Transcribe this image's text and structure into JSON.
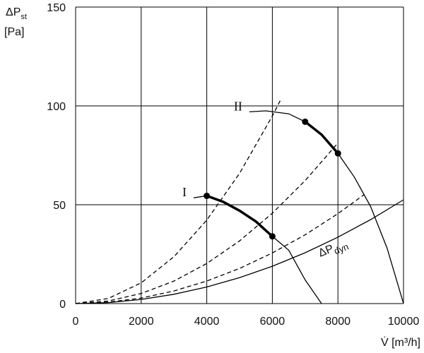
{
  "chart_data": {
    "type": "line",
    "y_label": "ΔP",
    "y_label_sub": "st",
    "y_label_unit": "[Pa]",
    "x_label": "V̇ [m³/h]",
    "xlim": [
      0,
      10000
    ],
    "xticks": [
      0,
      2000,
      4000,
      6000,
      8000,
      10000
    ],
    "ylim": [
      0,
      150
    ],
    "yticks": [
      0,
      50,
      100,
      150
    ],
    "grid": true,
    "series": [
      {
        "name": "I",
        "color": "#000000",
        "style": "solid",
        "x": [
          3600,
          4000,
          4500,
          5000,
          5500,
          6000,
          6500,
          7000,
          7500
        ],
        "values": [
          53.5,
          54.5,
          51.5,
          47,
          41.5,
          34,
          27,
          12,
          0
        ],
        "operating_points": {
          "x": [
            4000,
            6000
          ],
          "values": [
            54.5,
            34
          ]
        }
      },
      {
        "name": "II",
        "color": "#000000",
        "style": "solid",
        "x": [
          5300,
          5800,
          6500,
          7000,
          7500,
          8000,
          8500,
          9000,
          9500,
          10000
        ],
        "values": [
          97,
          97.5,
          96,
          92,
          85.5,
          76,
          64,
          49,
          28,
          0
        ],
        "operating_points": {
          "x": [
            7000,
            8000
          ],
          "values": [
            92,
            76
          ]
        }
      },
      {
        "color": "#000000",
        "style": "dashed",
        "x": [
          0,
          1000,
          2000,
          3000,
          4000,
          5000,
          6000,
          6250
        ],
        "values": [
          0,
          2.6,
          10.5,
          23.7,
          42.2,
          65.9,
          94.9,
          103
        ]
      },
      {
        "color": "#000000",
        "style": "dashed",
        "x": [
          0,
          1000,
          2000,
          3000,
          4000,
          5000,
          6000,
          7000,
          8000
        ],
        "values": [
          0,
          1.3,
          5.1,
          11.4,
          20.3,
          31.7,
          45.7,
          62.2,
          81.2
        ]
      },
      {
        "color": "#000000",
        "style": "dashed",
        "x": [
          0,
          1000,
          2000,
          3000,
          4000,
          5000,
          6000,
          7000,
          8000,
          8800
        ],
        "values": [
          0,
          0.7,
          2.8,
          6.4,
          11.4,
          17.8,
          25.6,
          34.8,
          45.5,
          55.1
        ]
      },
      {
        "name": "ΔP",
        "name_sub": "dyn",
        "color": "#000000",
        "style": "solid",
        "x": [
          0,
          1000,
          2000,
          3000,
          4000,
          5000,
          6000,
          7000,
          8000,
          9000,
          10000
        ],
        "values": [
          0,
          0.5,
          2.1,
          4.7,
          8.4,
          13.1,
          18.9,
          25.7,
          33.6,
          42.5,
          52.5
        ]
      }
    ]
  }
}
